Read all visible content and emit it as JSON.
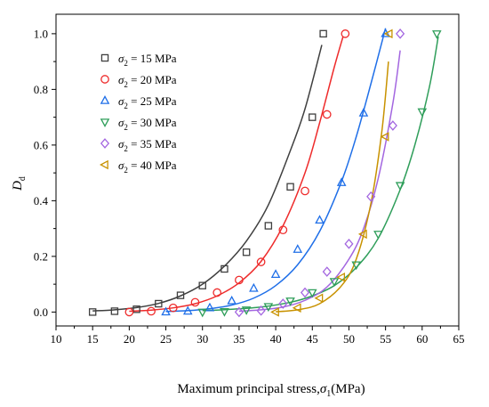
{
  "chart_data": {
    "type": "scatter",
    "xlabel_prefix": "Maximum principal stress,",
    "xlabel_symbol": "σ",
    "xlabel_subscript": "1",
    "xlabel_unit": "(MPa)",
    "ylabel_symbol": "D",
    "ylabel_subscript": "d",
    "xlim": [
      10,
      65
    ],
    "ylim": [
      -0.05,
      1.07
    ],
    "xticks": [
      10,
      15,
      20,
      25,
      30,
      35,
      40,
      45,
      50,
      55,
      60,
      65
    ],
    "yticks": [
      0.0,
      0.2,
      0.4,
      0.6,
      0.8,
      1.0
    ],
    "ytick_labels": [
      "0.0",
      "0.2",
      "0.4",
      "0.6",
      "0.8",
      "1.0"
    ],
    "legend_position": "top-left",
    "series": [
      {
        "name_prefix": "σ",
        "name_subscript": "2",
        "name_suffix": " = 15 MPa",
        "marker": "square",
        "color": "#3f3f3f",
        "x": [
          15,
          18,
          21,
          24,
          27,
          30,
          33,
          36,
          39,
          42,
          45,
          46.5
        ],
        "y": [
          0.0,
          0.003,
          0.01,
          0.03,
          0.06,
          0.095,
          0.155,
          0.215,
          0.31,
          0.45,
          0.7,
          1.0
        ],
        "fit_x": [
          15,
          18,
          21,
          24,
          27,
          30,
          33,
          36,
          39,
          42,
          44,
          46.3
        ],
        "fit_y": [
          0.004,
          0.008,
          0.016,
          0.031,
          0.058,
          0.1,
          0.165,
          0.255,
          0.385,
          0.58,
          0.73,
          0.96
        ]
      },
      {
        "name_prefix": "σ",
        "name_subscript": "2",
        "name_suffix": " = 20 MPa",
        "marker": "circle",
        "color": "#ee2b2b",
        "x": [
          20,
          23,
          26,
          29,
          32,
          35,
          38,
          41,
          44,
          47,
          49.5
        ],
        "y": [
          0.0,
          0.003,
          0.015,
          0.035,
          0.07,
          0.115,
          0.18,
          0.295,
          0.435,
          0.71,
          1.0
        ],
        "fit_x": [
          20,
          23,
          26,
          29,
          32,
          35,
          38,
          41,
          44,
          46,
          48,
          49.2
        ],
        "fit_y": [
          0.003,
          0.007,
          0.015,
          0.03,
          0.058,
          0.105,
          0.182,
          0.31,
          0.5,
          0.68,
          0.88,
          0.99
        ]
      },
      {
        "name_prefix": "σ",
        "name_subscript": "2",
        "name_suffix": " = 25 MPa",
        "marker": "triangle-up",
        "color": "#1f6fe8",
        "x": [
          25,
          28,
          31,
          34,
          37,
          40,
          43,
          46,
          49,
          52,
          55
        ],
        "y": [
          0.0,
          0.003,
          0.015,
          0.04,
          0.085,
          0.135,
          0.225,
          0.33,
          0.465,
          0.715,
          1.0
        ],
        "fit_x": [
          25,
          28,
          31,
          34,
          37,
          40,
          43,
          46,
          49,
          51,
          53,
          55
        ],
        "fit_y": [
          0.002,
          0.005,
          0.012,
          0.025,
          0.05,
          0.095,
          0.17,
          0.29,
          0.47,
          0.63,
          0.82,
          1.02
        ]
      },
      {
        "name_prefix": "σ",
        "name_subscript": "2",
        "name_suffix": " = 30 MPa",
        "marker": "triangle-down",
        "color": "#2f9e5a",
        "x": [
          30,
          33,
          36,
          39,
          42,
          45,
          48,
          51,
          54,
          57,
          60,
          62
        ],
        "y": [
          0.0,
          0.002,
          0.008,
          0.02,
          0.04,
          0.07,
          0.11,
          0.17,
          0.28,
          0.455,
          0.72,
          1.0
        ],
        "fit_x": [
          30,
          34,
          38,
          42,
          45,
          48,
          51,
          54,
          57,
          59,
          61,
          62.2
        ],
        "fit_y": [
          0.005,
          0.01,
          0.018,
          0.035,
          0.058,
          0.095,
          0.16,
          0.265,
          0.44,
          0.6,
          0.81,
          0.99
        ]
      },
      {
        "name_prefix": "σ",
        "name_subscript": "2",
        "name_suffix": " = 35 MPa",
        "marker": "diamond",
        "color": "#a366e0",
        "x": [
          35,
          38,
          41,
          44,
          47,
          50,
          53,
          56,
          57
        ],
        "y": [
          0.0,
          0.005,
          0.03,
          0.07,
          0.145,
          0.245,
          0.415,
          0.67,
          1.0
        ],
        "fit_x": [
          35,
          38,
          41,
          44,
          47,
          50,
          52,
          54,
          56,
          57
        ],
        "fit_y": [
          0.003,
          0.008,
          0.018,
          0.042,
          0.09,
          0.19,
          0.3,
          0.48,
          0.75,
          0.94
        ]
      },
      {
        "name_prefix": "σ",
        "name_subscript": "2",
        "name_suffix": " = 40 MPa",
        "marker": "triangle-left",
        "color": "#c89200",
        "x": [
          40,
          43,
          46,
          49,
          52,
          55,
          55.5
        ],
        "y": [
          0.0,
          0.015,
          0.05,
          0.125,
          0.28,
          0.63,
          1.0
        ],
        "fit_x": [
          40,
          43,
          46,
          49,
          51,
          53,
          54.5,
          55.4
        ],
        "fit_y": [
          0.001,
          0.008,
          0.03,
          0.095,
          0.19,
          0.39,
          0.65,
          0.9
        ]
      }
    ]
  }
}
